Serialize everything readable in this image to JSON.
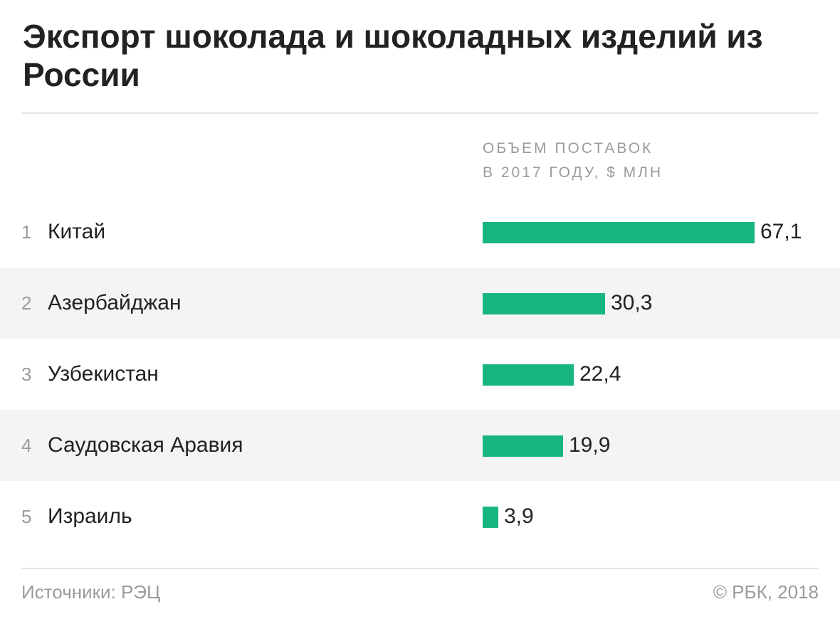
{
  "header": {
    "title": "Экспорт шоколада и шоколадных изделий из России"
  },
  "column_header": {
    "line1": "ОБЪЕМ ПОСТАВОК",
    "line2": "В 2017 ГОДУ, $ МЛН"
  },
  "colors": {
    "bar": "#17b67f",
    "row_shade": "#f4f4f4",
    "muted_text": "#9b9b9b"
  },
  "chart_data": {
    "type": "bar",
    "orientation": "horizontal",
    "title": "Экспорт шоколада и шоколадных изделий из России",
    "value_label": "ОБЪЕМ ПОСТАВОК В 2017 ГОДУ, $ МЛН",
    "xlim": [
      0,
      67.1
    ],
    "grid": false,
    "legend": "none",
    "rows": [
      {
        "rank": "1",
        "category": "Китай",
        "value": 67.1,
        "value_label": "67,1"
      },
      {
        "rank": "2",
        "category": "Азербайджан",
        "value": 30.3,
        "value_label": "30,3"
      },
      {
        "rank": "3",
        "category": "Узбекистан",
        "value": 22.4,
        "value_label": "22,4"
      },
      {
        "rank": "4",
        "category": "Саудовская Аравия",
        "value": 19.9,
        "value_label": "19,9"
      },
      {
        "rank": "5",
        "category": "Израиль",
        "value": 3.9,
        "value_label": "3,9"
      }
    ]
  },
  "footer": {
    "source": "Источники: РЭЦ",
    "copyright": "© РБК, 2018"
  }
}
